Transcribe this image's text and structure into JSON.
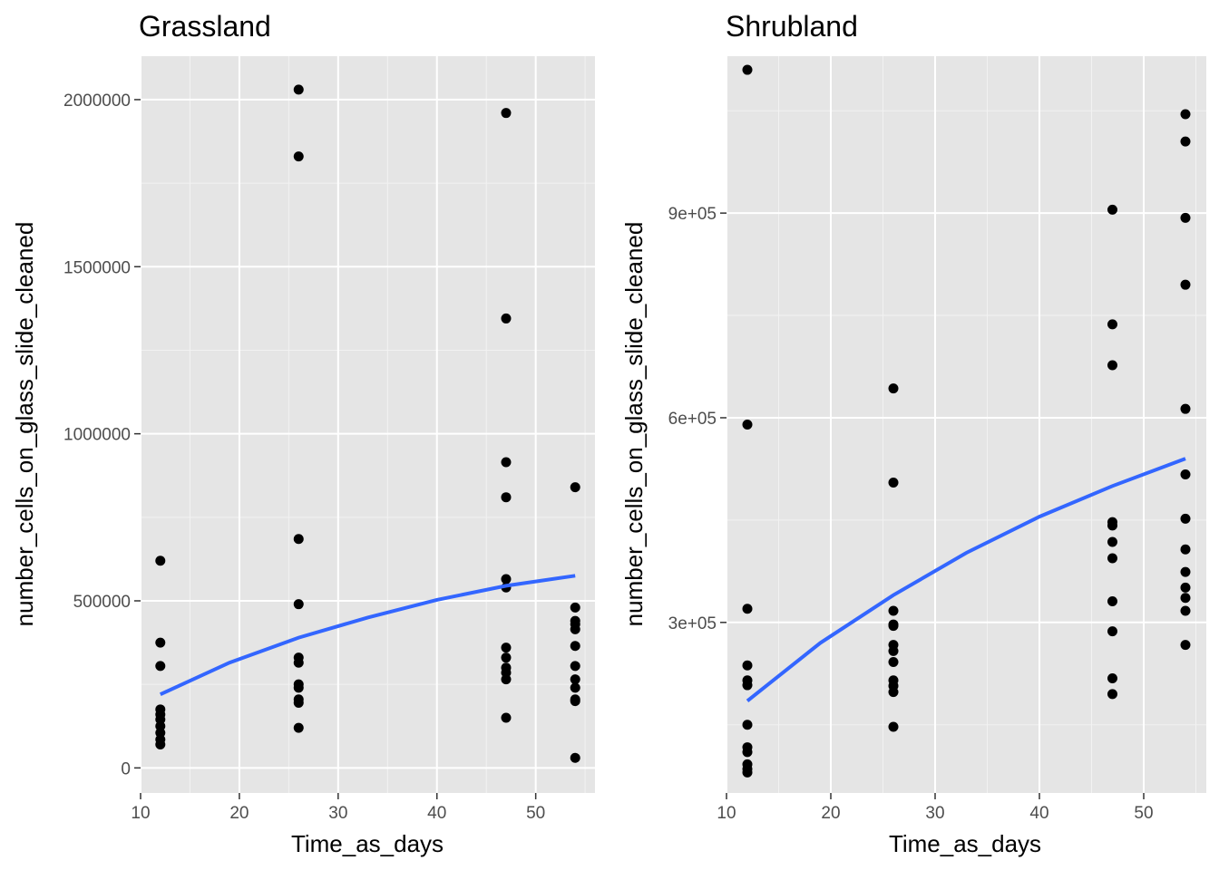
{
  "chart_data": [
    {
      "type": "scatter",
      "title": "Grassland",
      "xlabel": "Time_as_days",
      "ylabel": "number_cells_on_glass_slide_cleaned",
      "xlim": [
        10,
        56
      ],
      "ylim": [
        -75000,
        2130000
      ],
      "x_ticks": [
        10,
        20,
        30,
        40,
        50
      ],
      "y_ticks": [
        0,
        500000,
        1000000,
        1500000,
        2000000
      ],
      "y_tick_labels": [
        "0",
        "500000",
        "1000000",
        "1500000",
        "2000000"
      ],
      "grid": true,
      "points": [
        [
          12,
          620000
        ],
        [
          12,
          375000
        ],
        [
          12,
          305000
        ],
        [
          12,
          175000
        ],
        [
          12,
          160000
        ],
        [
          12,
          145000
        ],
        [
          12,
          125000
        ],
        [
          12,
          105000
        ],
        [
          12,
          85000
        ],
        [
          12,
          70000
        ],
        [
          26,
          2030000
        ],
        [
          26,
          1830000
        ],
        [
          26,
          685000
        ],
        [
          26,
          490000
        ],
        [
          26,
          330000
        ],
        [
          26,
          315000
        ],
        [
          26,
          250000
        ],
        [
          26,
          240000
        ],
        [
          26,
          205000
        ],
        [
          26,
          195000
        ],
        [
          26,
          120000
        ],
        [
          47,
          1960000
        ],
        [
          47,
          1345000
        ],
        [
          47,
          915000
        ],
        [
          47,
          810000
        ],
        [
          47,
          565000
        ],
        [
          47,
          540000
        ],
        [
          47,
          360000
        ],
        [
          47,
          330000
        ],
        [
          47,
          300000
        ],
        [
          47,
          285000
        ],
        [
          47,
          265000
        ],
        [
          47,
          150000
        ],
        [
          54,
          840000
        ],
        [
          54,
          480000
        ],
        [
          54,
          440000
        ],
        [
          54,
          430000
        ],
        [
          54,
          415000
        ],
        [
          54,
          365000
        ],
        [
          54,
          305000
        ],
        [
          54,
          265000
        ],
        [
          54,
          240000
        ],
        [
          54,
          205000
        ],
        [
          54,
          200000
        ],
        [
          54,
          30000
        ]
      ],
      "smooth": {
        "color": "#3366ff",
        "x": [
          12,
          19,
          26,
          33,
          40,
          47,
          54
        ],
        "y": [
          220000,
          315000,
          390000,
          450000,
          503000,
          545000,
          575000
        ]
      }
    },
    {
      "type": "scatter",
      "title": "Shrubland",
      "xlabel": "Time_as_days",
      "ylabel": "number_cells_on_glass_slide_cleaned",
      "xlim": [
        10,
        56
      ],
      "ylim": [
        50000,
        1130000
      ],
      "x_ticks": [
        10,
        20,
        30,
        40,
        50
      ],
      "y_ticks": [
        300000,
        600000,
        900000
      ],
      "y_tick_labels": [
        "3e+05",
        "6e+05",
        "9e+05"
      ],
      "grid": true,
      "points": [
        [
          12,
          1110000
        ],
        [
          12,
          590000
        ],
        [
          12,
          320000
        ],
        [
          12,
          237000
        ],
        [
          12,
          215000
        ],
        [
          12,
          208000
        ],
        [
          12,
          150000
        ],
        [
          12,
          117000
        ],
        [
          12,
          110000
        ],
        [
          12,
          92000
        ],
        [
          12,
          85000
        ],
        [
          12,
          80000
        ],
        [
          26,
          643000
        ],
        [
          26,
          505000
        ],
        [
          26,
          317000
        ],
        [
          26,
          297000
        ],
        [
          26,
          295000
        ],
        [
          26,
          267000
        ],
        [
          26,
          258000
        ],
        [
          26,
          242000
        ],
        [
          26,
          215000
        ],
        [
          26,
          207000
        ],
        [
          26,
          198000
        ],
        [
          26,
          147000
        ],
        [
          47,
          905000
        ],
        [
          47,
          737000
        ],
        [
          47,
          677000
        ],
        [
          47,
          447000
        ],
        [
          47,
          442000
        ],
        [
          47,
          418000
        ],
        [
          47,
          394000
        ],
        [
          47,
          331000
        ],
        [
          47,
          287000
        ],
        [
          47,
          218000
        ],
        [
          47,
          195000
        ],
        [
          54,
          1045000
        ],
        [
          54,
          1005000
        ],
        [
          54,
          893000
        ],
        [
          54,
          795000
        ],
        [
          54,
          613000
        ],
        [
          54,
          517000
        ],
        [
          54,
          452000
        ],
        [
          54,
          407000
        ],
        [
          54,
          374000
        ],
        [
          54,
          351000
        ],
        [
          54,
          336000
        ],
        [
          54,
          317000
        ],
        [
          54,
          267000
        ]
      ],
      "smooth": {
        "color": "#3366ff",
        "x": [
          12,
          19,
          26,
          33,
          40,
          47,
          54
        ],
        "y": [
          185000,
          270000,
          340000,
          402000,
          455000,
          500000,
          540000
        ]
      }
    }
  ]
}
